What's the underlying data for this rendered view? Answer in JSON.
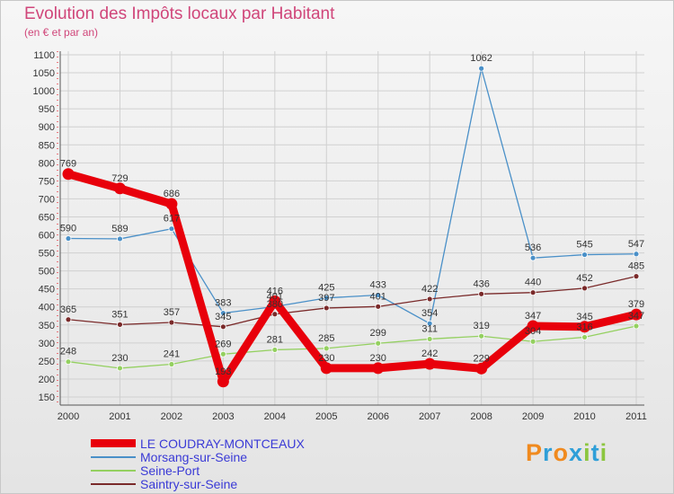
{
  "chart_data": {
    "type": "line",
    "title": "Evolution des Impôts locaux par Habitant",
    "subtitle": "(en € et par an)",
    "xlabel": "",
    "ylabel": "",
    "categories": [
      "2000",
      "2001",
      "2002",
      "2003",
      "2004",
      "2005",
      "2006",
      "2007",
      "2008",
      "2009",
      "2010",
      "2011"
    ],
    "ylim": [
      150,
      1100
    ],
    "yticks": [
      150,
      200,
      250,
      300,
      350,
      400,
      450,
      500,
      550,
      600,
      650,
      700,
      750,
      800,
      850,
      900,
      950,
      1000,
      1050,
      1100
    ],
    "grid": true,
    "series": [
      {
        "name": "LE COUDRAY-MONTCEAUX",
        "color": "#e8000b",
        "values": [
          769,
          729,
          686,
          193,
          416,
          230,
          230,
          242,
          229,
          347,
          345,
          379
        ]
      },
      {
        "name": "Morsang-sur-Seine",
        "color": "#4a90c8",
        "values": [
          590,
          589,
          617,
          383,
          401,
          425,
          433,
          354,
          1062,
          536,
          545,
          547
        ]
      },
      {
        "name": "Seine-Port",
        "color": "#94d060",
        "values": [
          248,
          230,
          241,
          269,
          281,
          285,
          299,
          311,
          319,
          304,
          316,
          347
        ]
      },
      {
        "name": "Saintry-sur-Seine",
        "color": "#7a2a2a",
        "values": [
          365,
          351,
          357,
          345,
          380,
          397,
          401,
          422,
          436,
          440,
          452,
          485
        ]
      }
    ]
  },
  "legend": [
    "LE COUDRAY-MONTCEAUX",
    "Morsang-sur-Seine",
    "Seine-Port",
    "Saintry-sur-Seine"
  ],
  "logo": {
    "text": [
      "P",
      "r",
      "o",
      "x",
      "i",
      "t",
      "i"
    ],
    "colors": [
      "#f08a1e",
      "#2f9fd8",
      "#f08a1e",
      "#2f9fd8",
      "#8cc63f",
      "#2f9fd8",
      "#8cc63f"
    ]
  }
}
